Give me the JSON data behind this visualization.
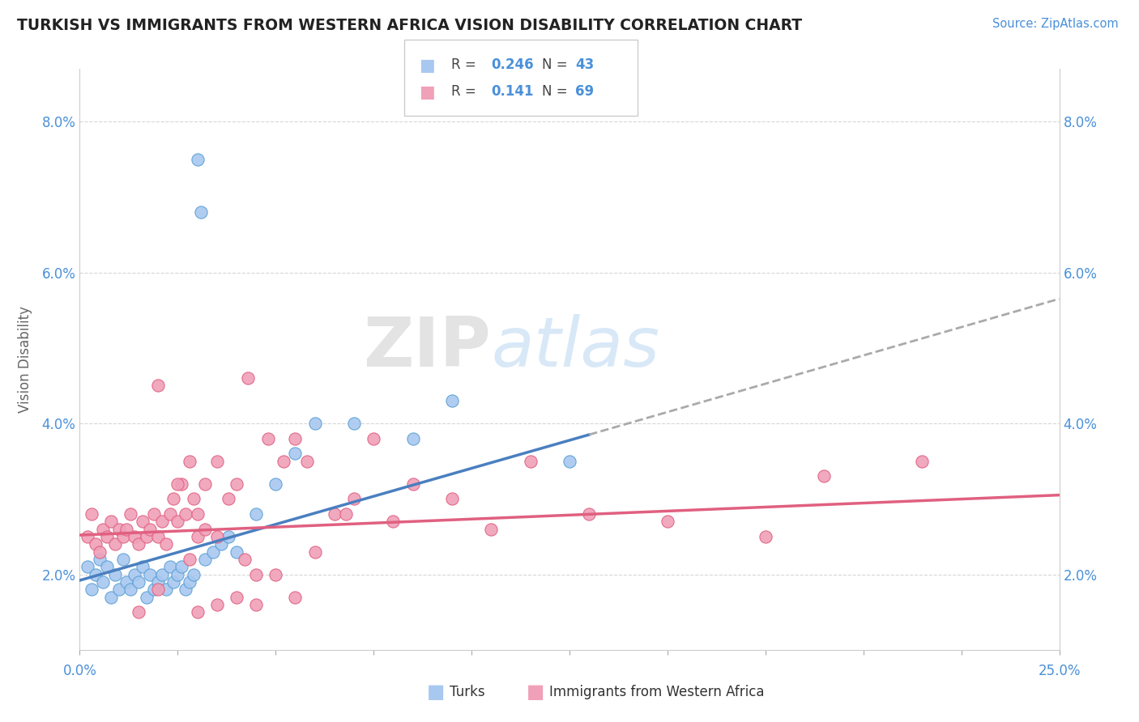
{
  "title": "TURKISH VS IMMIGRANTS FROM WESTERN AFRICA VISION DISABILITY CORRELATION CHART",
  "source": "Source: ZipAtlas.com",
  "ylabel": "Vision Disability",
  "xmin": 0.0,
  "xmax": 25.0,
  "ymin": 1.0,
  "ymax": 8.7,
  "yticks": [
    2.0,
    4.0,
    6.0,
    8.0
  ],
  "color_turks": "#A8C8F0",
  "color_turks_edge": "#5A9FD4",
  "color_immigrants": "#F0A0B8",
  "color_immigrants_edge": "#E06080",
  "color_trend_turks": "#4A7FC0",
  "color_trend_immigrants": "#E06080",
  "color_dashed": "#AAAAAA",
  "background_color": "#FFFFFF",
  "turks_x": [
    0.2,
    0.3,
    0.4,
    0.5,
    0.6,
    0.7,
    0.8,
    0.9,
    1.0,
    1.1,
    1.2,
    1.3,
    1.4,
    1.5,
    1.6,
    1.7,
    1.8,
    1.9,
    2.0,
    2.1,
    2.2,
    2.3,
    2.4,
    2.5,
    2.6,
    2.7,
    2.8,
    2.9,
    3.0,
    3.1,
    3.2,
    3.4,
    3.6,
    3.8,
    4.0,
    4.5,
    5.0,
    5.5,
    6.0,
    7.0,
    8.5,
    9.5,
    12.5
  ],
  "turks_y": [
    2.1,
    1.8,
    2.0,
    2.2,
    1.9,
    2.1,
    1.7,
    2.0,
    1.8,
    2.2,
    1.9,
    1.8,
    2.0,
    1.9,
    2.1,
    1.7,
    2.0,
    1.8,
    1.9,
    2.0,
    1.8,
    2.1,
    1.9,
    2.0,
    2.1,
    1.8,
    1.9,
    2.0,
    7.5,
    6.8,
    2.2,
    2.3,
    2.4,
    2.5,
    2.3,
    2.8,
    3.2,
    3.6,
    4.0,
    4.0,
    3.8,
    4.3,
    3.5
  ],
  "immig_x": [
    0.2,
    0.3,
    0.4,
    0.5,
    0.6,
    0.7,
    0.8,
    0.9,
    1.0,
    1.1,
    1.2,
    1.3,
    1.4,
    1.5,
    1.6,
    1.7,
    1.8,
    1.9,
    2.0,
    2.1,
    2.2,
    2.3,
    2.4,
    2.5,
    2.6,
    2.7,
    2.8,
    2.9,
    3.0,
    3.2,
    3.5,
    3.8,
    4.0,
    4.3,
    4.8,
    5.2,
    5.5,
    5.8,
    6.5,
    7.0,
    8.0,
    9.5,
    10.5,
    11.5,
    13.0,
    15.0,
    17.5,
    19.0,
    21.5,
    2.0,
    2.5,
    3.0,
    3.5,
    4.0,
    5.0,
    4.5,
    3.0,
    2.0,
    1.5,
    2.8,
    3.5,
    4.2,
    5.5,
    6.8,
    8.5,
    7.5,
    6.0,
    4.5,
    3.2
  ],
  "immig_y": [
    2.5,
    2.8,
    2.4,
    2.3,
    2.6,
    2.5,
    2.7,
    2.4,
    2.6,
    2.5,
    2.6,
    2.8,
    2.5,
    2.4,
    2.7,
    2.5,
    2.6,
    2.8,
    2.5,
    2.7,
    2.4,
    2.8,
    3.0,
    2.7,
    3.2,
    2.8,
    3.5,
    3.0,
    2.5,
    3.2,
    3.5,
    3.0,
    3.2,
    4.6,
    3.8,
    3.5,
    3.8,
    3.5,
    2.8,
    3.0,
    2.7,
    3.0,
    2.6,
    3.5,
    2.8,
    2.7,
    2.5,
    3.3,
    3.5,
    4.5,
    3.2,
    2.8,
    1.6,
    1.7,
    2.0,
    1.6,
    1.5,
    1.8,
    1.5,
    2.2,
    2.5,
    2.2,
    1.7,
    2.8,
    3.2,
    3.8,
    2.3,
    2.0,
    2.6
  ],
  "trend_turks_start_x": 0.0,
  "trend_turks_start_y": 1.92,
  "trend_turks_end_x": 13.0,
  "trend_turks_end_y": 3.85,
  "trend_dashed_end_x": 25.0,
  "trend_dashed_end_y": 5.65,
  "trend_immig_start_x": 0.0,
  "trend_immig_start_y": 2.52,
  "trend_immig_end_x": 25.0,
  "trend_immig_end_y": 3.05
}
